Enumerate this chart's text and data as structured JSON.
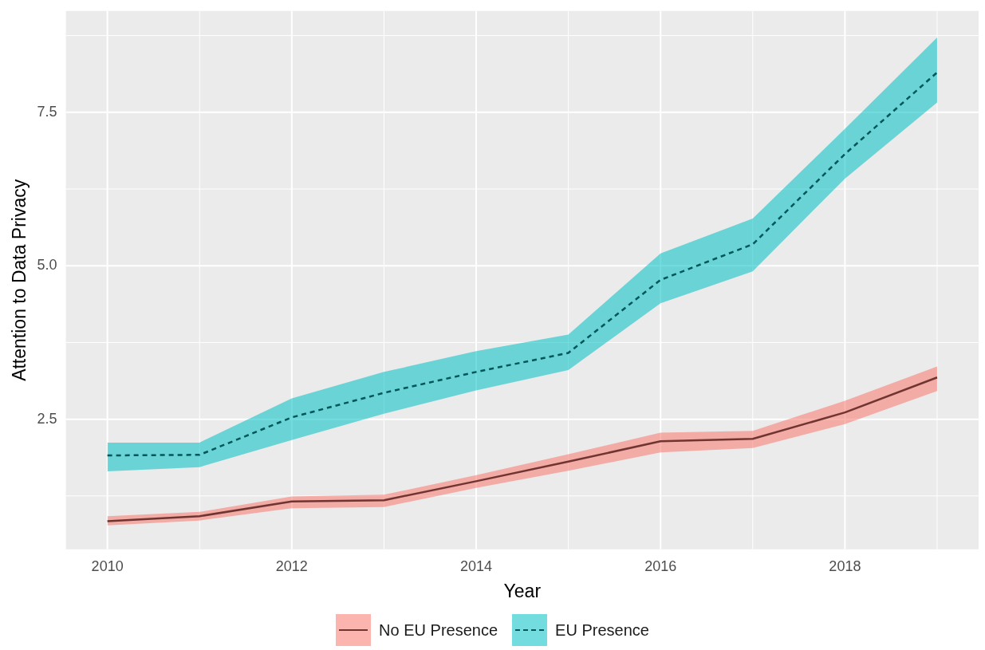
{
  "chart_data": {
    "type": "line",
    "xlabel": "Year",
    "ylabel": "Attention to Data Privacy",
    "x": [
      2010,
      2011,
      2012,
      2013,
      2014,
      2015,
      2016,
      2017,
      2018,
      2019
    ],
    "xlim": [
      2009.55,
      2019.45
    ],
    "xticks": [
      2010,
      2012,
      2014,
      2016,
      2018
    ],
    "ylim": [
      0.38,
      9.15
    ],
    "yticks": [
      2.5,
      {
        "value": 5,
        "label": "5.0"
      },
      7.5
    ],
    "grid": true,
    "legend": "bottom",
    "marker": "none",
    "series": [
      {
        "name": "No EU Presence",
        "color": "#703531",
        "line_style": "solid",
        "values": [
          0.84,
          0.92,
          1.16,
          1.18,
          1.49,
          1.81,
          2.14,
          2.18,
          2.61,
          3.18
        ],
        "lower": [
          0.77,
          0.85,
          1.05,
          1.07,
          1.38,
          1.66,
          1.96,
          2.03,
          2.42,
          2.96
        ],
        "upper": [
          0.92,
          0.99,
          1.24,
          1.27,
          1.59,
          1.93,
          2.28,
          2.31,
          2.8,
          3.36
        ]
      },
      {
        "name": "EU Presence",
        "color": "#005658",
        "line_style": "dashed",
        "values": [
          1.91,
          1.92,
          2.53,
          2.93,
          3.27,
          3.58,
          4.77,
          5.35,
          6.82,
          8.15
        ],
        "lower": [
          1.65,
          1.72,
          2.16,
          2.59,
          2.97,
          3.3,
          4.39,
          4.91,
          6.42,
          7.66
        ],
        "upper": [
          2.12,
          2.12,
          2.84,
          3.27,
          3.61,
          3.88,
          5.2,
          5.77,
          7.23,
          8.72
        ]
      }
    ]
  }
}
